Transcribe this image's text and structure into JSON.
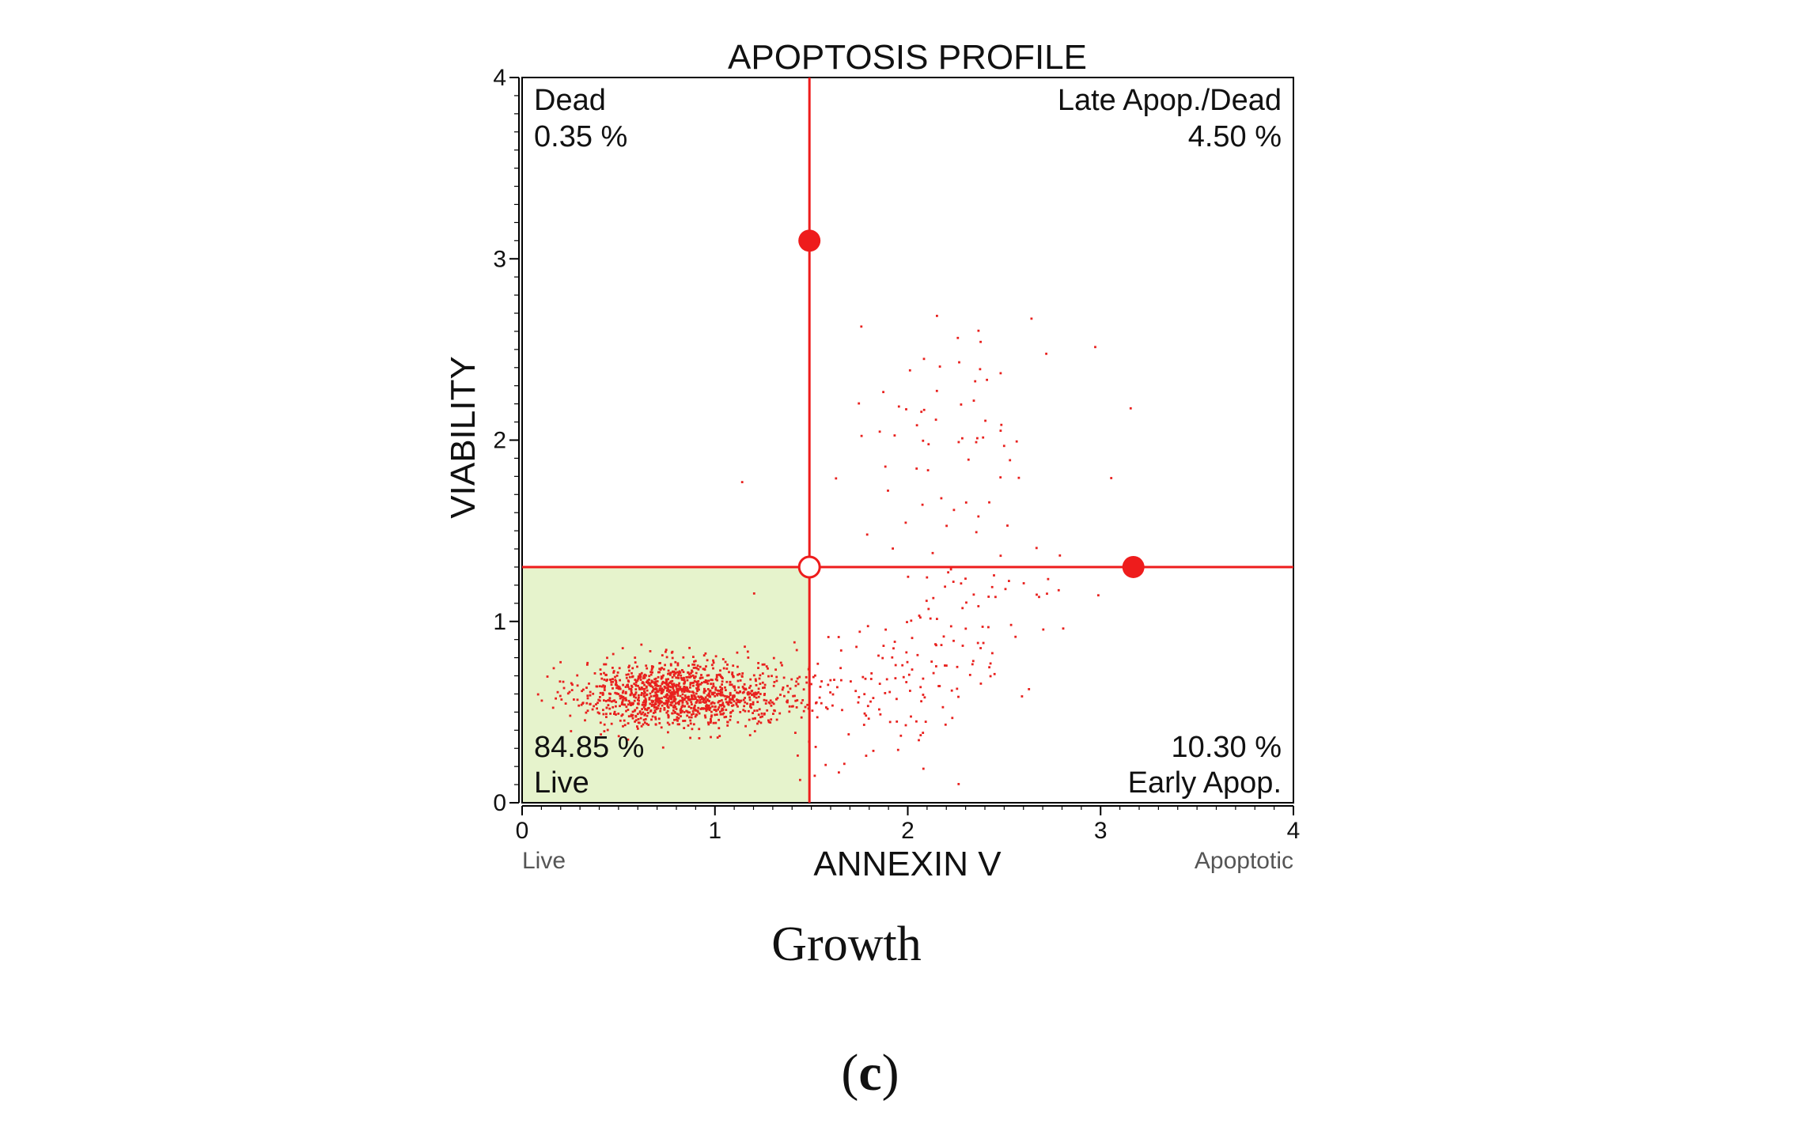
{
  "chart_data": {
    "type": "scatter",
    "title": "APOPTOSIS PROFILE",
    "xlabel": "ANNEXIN V",
    "ylabel": "VIABILITY",
    "xlim": [
      0,
      4
    ],
    "ylim": [
      0,
      4
    ],
    "xticks": [
      0,
      1,
      2,
      3,
      4
    ],
    "yticks": [
      0,
      1,
      2,
      3,
      4
    ],
    "x_end_labels": {
      "left": "Live",
      "right": "Apoptotic"
    },
    "gate": {
      "x": 1.49,
      "y": 1.3
    },
    "gate_handles": {
      "vertical_handle_y": 3.1,
      "horizontal_handle_x": 3.17
    },
    "quadrants": [
      {
        "position": "top-left",
        "name": "Dead",
        "percent": "0.35 %"
      },
      {
        "position": "top-right",
        "name": "Late Apop./Dead",
        "percent": "4.50 %"
      },
      {
        "position": "bottom-left",
        "name": "Live",
        "percent": "84.85 %"
      },
      {
        "position": "bottom-right",
        "name": "Early Apop.",
        "percent": "10.30 %"
      }
    ],
    "populations": [
      {
        "name": "live cluster",
        "center": [
          0.78,
          0.6
        ],
        "spread": [
          0.24,
          0.09
        ],
        "count": 1100
      },
      {
        "name": "live tail",
        "center": [
          1.2,
          0.6
        ],
        "spread": [
          0.22,
          0.1
        ],
        "count": 180
      },
      {
        "name": "early apoptotic",
        "center": [
          2.05,
          0.72
        ],
        "spread": [
          0.38,
          0.24
        ],
        "count": 170
      },
      {
        "name": "late apoptotic",
        "center": [
          2.3,
          2.05
        ],
        "spread": [
          0.28,
          0.32
        ],
        "count": 70
      }
    ],
    "colors": {
      "points": "#e8211e",
      "gate": "#ee1c1c",
      "live_fill": "#e6f3cc",
      "axis": "#000000"
    }
  },
  "caption": "Growth",
  "panel_label": {
    "open": "(",
    "letter": "c",
    "close": ")"
  }
}
